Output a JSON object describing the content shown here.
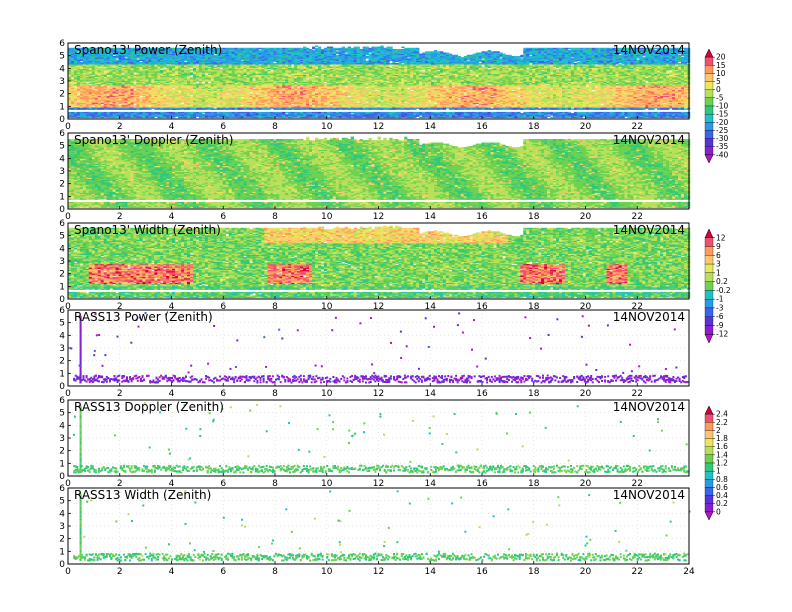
{
  "chart_data": [
    {
      "type": "heatmap",
      "title": "Spano13' Power (Zenith)",
      "date": "14NOV2014",
      "xlim": [
        0,
        24
      ],
      "ylim": [
        0,
        6
      ],
      "xticks": [
        0,
        2,
        4,
        6,
        8,
        10,
        12,
        14,
        16,
        18,
        20,
        22
      ],
      "yticks": [
        0,
        1,
        2,
        3,
        4,
        5,
        6
      ],
      "colorbar": "power",
      "profile": "power",
      "top_height": 5.6
    },
    {
      "type": "heatmap",
      "title": "Spano13' Doppler (Zenith)",
      "date": "14NOV2014",
      "xlim": [
        0,
        24
      ],
      "ylim": [
        0,
        6
      ],
      "xticks": [
        0,
        2,
        4,
        6,
        8,
        10,
        12,
        14,
        16,
        18,
        20,
        22
      ],
      "yticks": [
        0,
        1,
        2,
        3,
        4,
        5,
        6
      ],
      "colorbar": null,
      "profile": "doppler",
      "top_height": 5.5
    },
    {
      "type": "heatmap",
      "title": "Spano13' Width (Zenith)",
      "date": "14NOV2014",
      "xlim": [
        0,
        24
      ],
      "ylim": [
        0,
        6
      ],
      "xticks": [
        0,
        2,
        4,
        6,
        8,
        10,
        12,
        14,
        16,
        18,
        20,
        22
      ],
      "yticks": [
        0,
        1,
        2,
        3,
        4,
        5,
        6
      ],
      "colorbar": "width",
      "profile": "width",
      "top_height": 5.6
    },
    {
      "type": "scatter",
      "title": "RASS13  Power (Zenith)",
      "date": "14NOV2014",
      "xlim": [
        0,
        24
      ],
      "ylim": [
        0,
        6
      ],
      "xticks": [
        0,
        2,
        4,
        6,
        8,
        10,
        12,
        14,
        16,
        18,
        20,
        22
      ],
      "yticks": [
        0,
        1,
        2,
        3,
        4,
        5,
        6
      ],
      "colorbar": null,
      "profile": "rass_power"
    },
    {
      "type": "scatter",
      "title": "RASS13  Doppler (Zenith)",
      "date": "14NOV2014",
      "xlim": [
        0,
        24
      ],
      "ylim": [
        0,
        6
      ],
      "xticks": [
        0,
        2,
        4,
        6,
        8,
        10,
        12,
        14,
        16,
        18,
        20,
        22
      ],
      "yticks": [
        0,
        1,
        2,
        3,
        4,
        5,
        6
      ],
      "colorbar": "doppler",
      "profile": "rass_doppler"
    },
    {
      "type": "scatter",
      "title": "RASS13  Width (Zenith)",
      "date": "14NOV2014",
      "xlim": [
        0,
        24
      ],
      "ylim": [
        0,
        6
      ],
      "xticks": [
        0,
        2,
        4,
        6,
        8,
        10,
        12,
        14,
        16,
        18,
        20,
        22,
        24
      ],
      "yticks": [
        0,
        1,
        2,
        3,
        4,
        5,
        6
      ],
      "colorbar": null,
      "profile": "rass_width"
    }
  ],
  "colorbars": {
    "power": {
      "labels": [
        "20",
        "15",
        "10",
        "5",
        "0",
        "-5",
        "-10",
        "-15",
        "-20",
        "-25",
        "-30",
        "-35",
        "-40"
      ],
      "colors": [
        "#d7003c",
        "#f0506e",
        "#ff9a5a",
        "#ffc66e",
        "#e8e85a",
        "#b6e05a",
        "#6ed250",
        "#32c878",
        "#1ec3c8",
        "#289be6",
        "#3c64f0",
        "#5a32dc",
        "#8c1ed2",
        "#b414c8"
      ]
    },
    "width": {
      "labels": [
        "12",
        "9",
        "6",
        "3",
        "1",
        "0.2",
        "-0.2",
        "-1",
        "-3",
        "-6",
        "-9",
        "-12"
      ],
      "colors": [
        "#d7003c",
        "#f0506e",
        "#ff9a5a",
        "#ffc66e",
        "#e8e85a",
        "#b6e05a",
        "#6ed250",
        "#1ec3c8",
        "#289be6",
        "#3c64f0",
        "#5a32dc",
        "#8c1ed2",
        "#b414c8"
      ]
    },
    "doppler": {
      "labels": [
        "2.4",
        "2.2",
        "2",
        "1.8",
        "1.6",
        "1.4",
        "1.2",
        "1",
        "0.8",
        "0.6",
        "0.4",
        "0.2",
        "0"
      ],
      "colors": [
        "#d7003c",
        "#f0506e",
        "#ff9a5a",
        "#ffc66e",
        "#e8e85a",
        "#b6e05a",
        "#6ed250",
        "#32c878",
        "#1ec3c8",
        "#289be6",
        "#3c64f0",
        "#5a32dc",
        "#8c1ed2",
        "#b414c8"
      ]
    }
  }
}
